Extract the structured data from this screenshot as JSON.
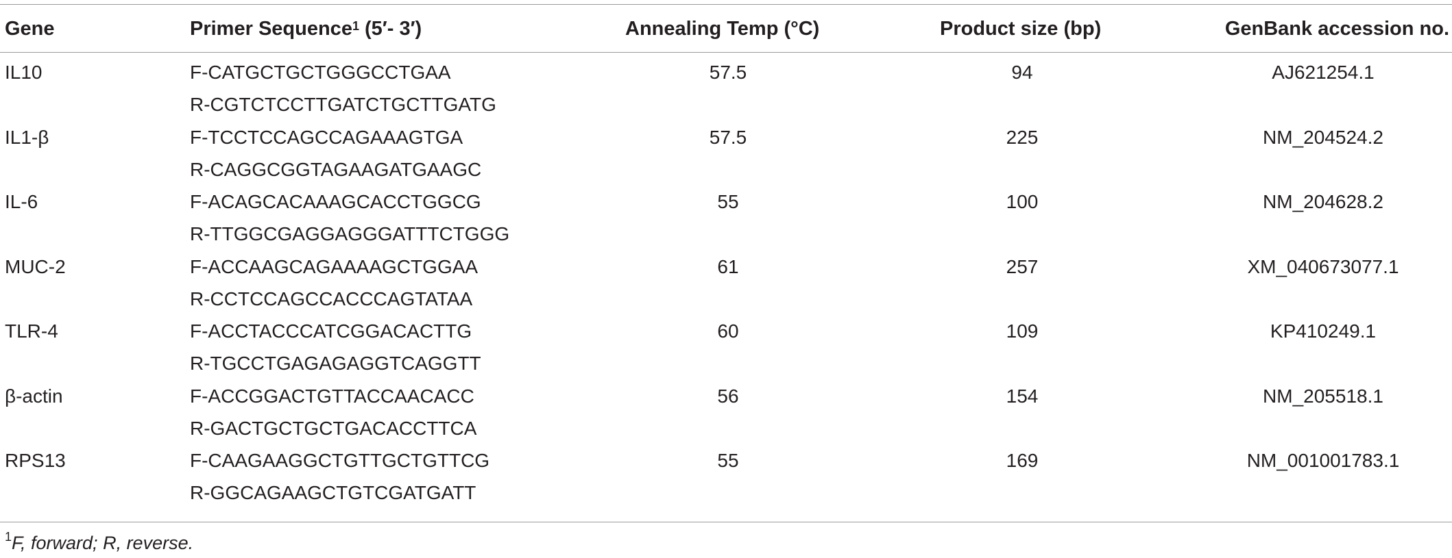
{
  "table": {
    "headers": {
      "gene": "Gene",
      "primer": "Primer Sequence",
      "primer_sup": "1",
      "primer_suffix": " (5′- 3′)",
      "temp": "Annealing Temp (°C)",
      "size": "Product size (bp)",
      "accession": "GenBank accession no."
    },
    "rows": [
      {
        "gene": "IL10",
        "forward": "F-CATGCTGCTGGGCCTGAA",
        "reverse": "R-CGTCTCCTTGATCTGCTTGATG",
        "temp": "57.5",
        "size": "94",
        "accession": "AJ621254.1"
      },
      {
        "gene": "IL1-β",
        "forward": "F-TCCTCCAGCCAGAAAGTGA",
        "reverse": "R-CAGGCGGTAGAAGATGAAGC",
        "temp": "57.5",
        "size": "225",
        "accession": "NM_204524.2"
      },
      {
        "gene": "IL-6",
        "forward": "F-ACAGCACAAAGCACCTGGCG",
        "reverse": "R-TTGGCGAGGAGGGATTTCTGGG",
        "temp": "55",
        "size": "100",
        "accession": "NM_204628.2"
      },
      {
        "gene": "MUC-2",
        "forward": "F-ACCAAGCAGAAAAGCTGGAA",
        "reverse": "R-CCTCCAGCCACCCAGTATAA",
        "temp": "61",
        "size": "257",
        "accession": "XM_040673077.1"
      },
      {
        "gene": "TLR-4",
        "forward": "F-ACCTACCCATCGGACACTTG",
        "reverse": "R-TGCCTGAGAGAGGTCAGGTT",
        "temp": "60",
        "size": "109",
        "accession": "KP410249.1"
      },
      {
        "gene": "β-actin",
        "forward": "F-ACCGGACTGTTACCAACACC",
        "reverse": "R-GACTGCTGCTGACACCTTCA",
        "temp": "56",
        "size": "154",
        "accession": "NM_205518.1"
      },
      {
        "gene": "RPS13",
        "forward": "F-CAAGAAGGCTGTTGCTGTTCG",
        "reverse": "R-GGCAGAAGCTGTCGATGATT",
        "temp": "55",
        "size": "169",
        "accession": "NM_001001783.1"
      }
    ]
  },
  "footnote": {
    "sup": "1",
    "text": "F, forward; R, reverse."
  }
}
